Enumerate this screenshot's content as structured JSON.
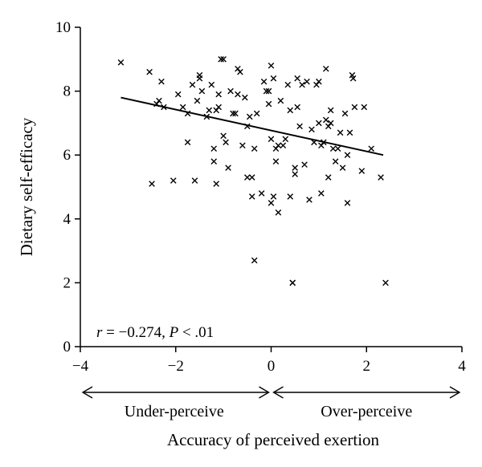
{
  "chart_data": {
    "type": "scatter",
    "xlabel": "Accuracy of perceived exertion",
    "ylabel": "Dietary self-efficacy",
    "xlim": [
      -4,
      4
    ],
    "ylim": [
      0,
      10
    ],
    "xticks": [
      -4,
      -2,
      0,
      2,
      4
    ],
    "yticks": [
      0,
      2,
      4,
      6,
      8,
      10
    ],
    "xtick_labels": [
      "−4",
      "−2",
      "0",
      "2",
      "4"
    ],
    "ytick_labels": [
      "0",
      "2",
      "4",
      "6",
      "8",
      "10"
    ],
    "grid": false,
    "legend": "none",
    "marker": "x",
    "marker_color": "#000000",
    "annotation": {
      "r_symbol": "r",
      "r_rest": " = −0.274, ",
      "p_symbol": "P",
      "p_rest": " < .01"
    },
    "regions": [
      {
        "label": "Under-perceive",
        "from": -4,
        "to": 0
      },
      {
        "label": "Over-perceive",
        "from": 0,
        "to": 4
      }
    ],
    "trendline": {
      "x1": -3.15,
      "y1": 7.8,
      "x2": 2.35,
      "y2": 6.0
    },
    "points": [
      [
        -3.15,
        8.9
      ],
      [
        -2.55,
        8.6
      ],
      [
        -2.5,
        5.1
      ],
      [
        -2.4,
        7.6
      ],
      [
        -2.35,
        7.7
      ],
      [
        -2.3,
        8.3
      ],
      [
        -2.25,
        7.5
      ],
      [
        -2.05,
        5.2
      ],
      [
        -1.95,
        7.9
      ],
      [
        -1.85,
        7.5
      ],
      [
        -1.75,
        6.4
      ],
      [
        -1.75,
        7.3
      ],
      [
        -1.65,
        8.2
      ],
      [
        -1.6,
        5.2
      ],
      [
        -1.55,
        7.7
      ],
      [
        -1.5,
        8.5
      ],
      [
        -1.5,
        8.4
      ],
      [
        -1.45,
        8.0
      ],
      [
        -1.35,
        7.2
      ],
      [
        -1.3,
        7.4
      ],
      [
        -1.25,
        8.2
      ],
      [
        -1.2,
        5.8
      ],
      [
        -1.2,
        6.2
      ],
      [
        -1.15,
        5.1
      ],
      [
        -1.15,
        7.4
      ],
      [
        -1.1,
        7.9
      ],
      [
        -1.1,
        7.5
      ],
      [
        -1.05,
        9.0
      ],
      [
        -1.0,
        9.0
      ],
      [
        -1.0,
        6.6
      ],
      [
        -0.95,
        6.4
      ],
      [
        -0.9,
        5.6
      ],
      [
        -0.85,
        8.0
      ],
      [
        -0.8,
        7.3
      ],
      [
        -0.75,
        7.3
      ],
      [
        -0.7,
        7.9
      ],
      [
        -0.7,
        8.7
      ],
      [
        -0.65,
        8.6
      ],
      [
        -0.6,
        6.3
      ],
      [
        -0.55,
        7.8
      ],
      [
        -0.5,
        6.9
      ],
      [
        -0.5,
        5.3
      ],
      [
        -0.45,
        7.2
      ],
      [
        -0.4,
        5.3
      ],
      [
        -0.4,
        4.7
      ],
      [
        -0.35,
        6.2
      ],
      [
        -0.35,
        2.7
      ],
      [
        -0.3,
        7.3
      ],
      [
        -0.2,
        4.8
      ],
      [
        -0.15,
        8.3
      ],
      [
        -0.1,
        8.0
      ],
      [
        -0.05,
        8.0
      ],
      [
        -0.05,
        7.6
      ],
      [
        0.0,
        8.8
      ],
      [
        0.0,
        6.5
      ],
      [
        0.0,
        4.5
      ],
      [
        0.05,
        8.4
      ],
      [
        0.05,
        4.7
      ],
      [
        0.1,
        6.2
      ],
      [
        0.1,
        5.8
      ],
      [
        0.15,
        6.3
      ],
      [
        0.15,
        4.2
      ],
      [
        0.2,
        7.7
      ],
      [
        0.25,
        6.3
      ],
      [
        0.3,
        6.5
      ],
      [
        0.35,
        8.2
      ],
      [
        0.4,
        7.4
      ],
      [
        0.4,
        4.7
      ],
      [
        0.45,
        2.0
      ],
      [
        0.45,
        2.0
      ],
      [
        0.5,
        5.6
      ],
      [
        0.5,
        5.4
      ],
      [
        0.55,
        7.5
      ],
      [
        0.55,
        8.4
      ],
      [
        0.6,
        6.9
      ],
      [
        0.65,
        8.2
      ],
      [
        0.7,
        5.7
      ],
      [
        0.75,
        8.3
      ],
      [
        0.8,
        4.6
      ],
      [
        0.85,
        6.8
      ],
      [
        0.9,
        6.4
      ],
      [
        0.95,
        8.2
      ],
      [
        1.0,
        8.3
      ],
      [
        1.0,
        7.0
      ],
      [
        1.05,
        4.8
      ],
      [
        1.05,
        6.3
      ],
      [
        1.1,
        6.4
      ],
      [
        1.15,
        8.7
      ],
      [
        1.15,
        7.1
      ],
      [
        1.2,
        6.9
      ],
      [
        1.2,
        5.3
      ],
      [
        1.25,
        7.4
      ],
      [
        1.25,
        7.0
      ],
      [
        1.3,
        6.2
      ],
      [
        1.35,
        5.8
      ],
      [
        1.4,
        6.2
      ],
      [
        1.45,
        6.7
      ],
      [
        1.5,
        5.6
      ],
      [
        1.55,
        7.3
      ],
      [
        1.6,
        6.0
      ],
      [
        1.6,
        4.5
      ],
      [
        1.65,
        6.7
      ],
      [
        1.7,
        8.5
      ],
      [
        1.72,
        8.4
      ],
      [
        1.75,
        7.5
      ],
      [
        1.9,
        5.5
      ],
      [
        1.95,
        7.5
      ],
      [
        2.1,
        6.2
      ],
      [
        2.3,
        5.3
      ],
      [
        2.4,
        2.0
      ]
    ]
  }
}
